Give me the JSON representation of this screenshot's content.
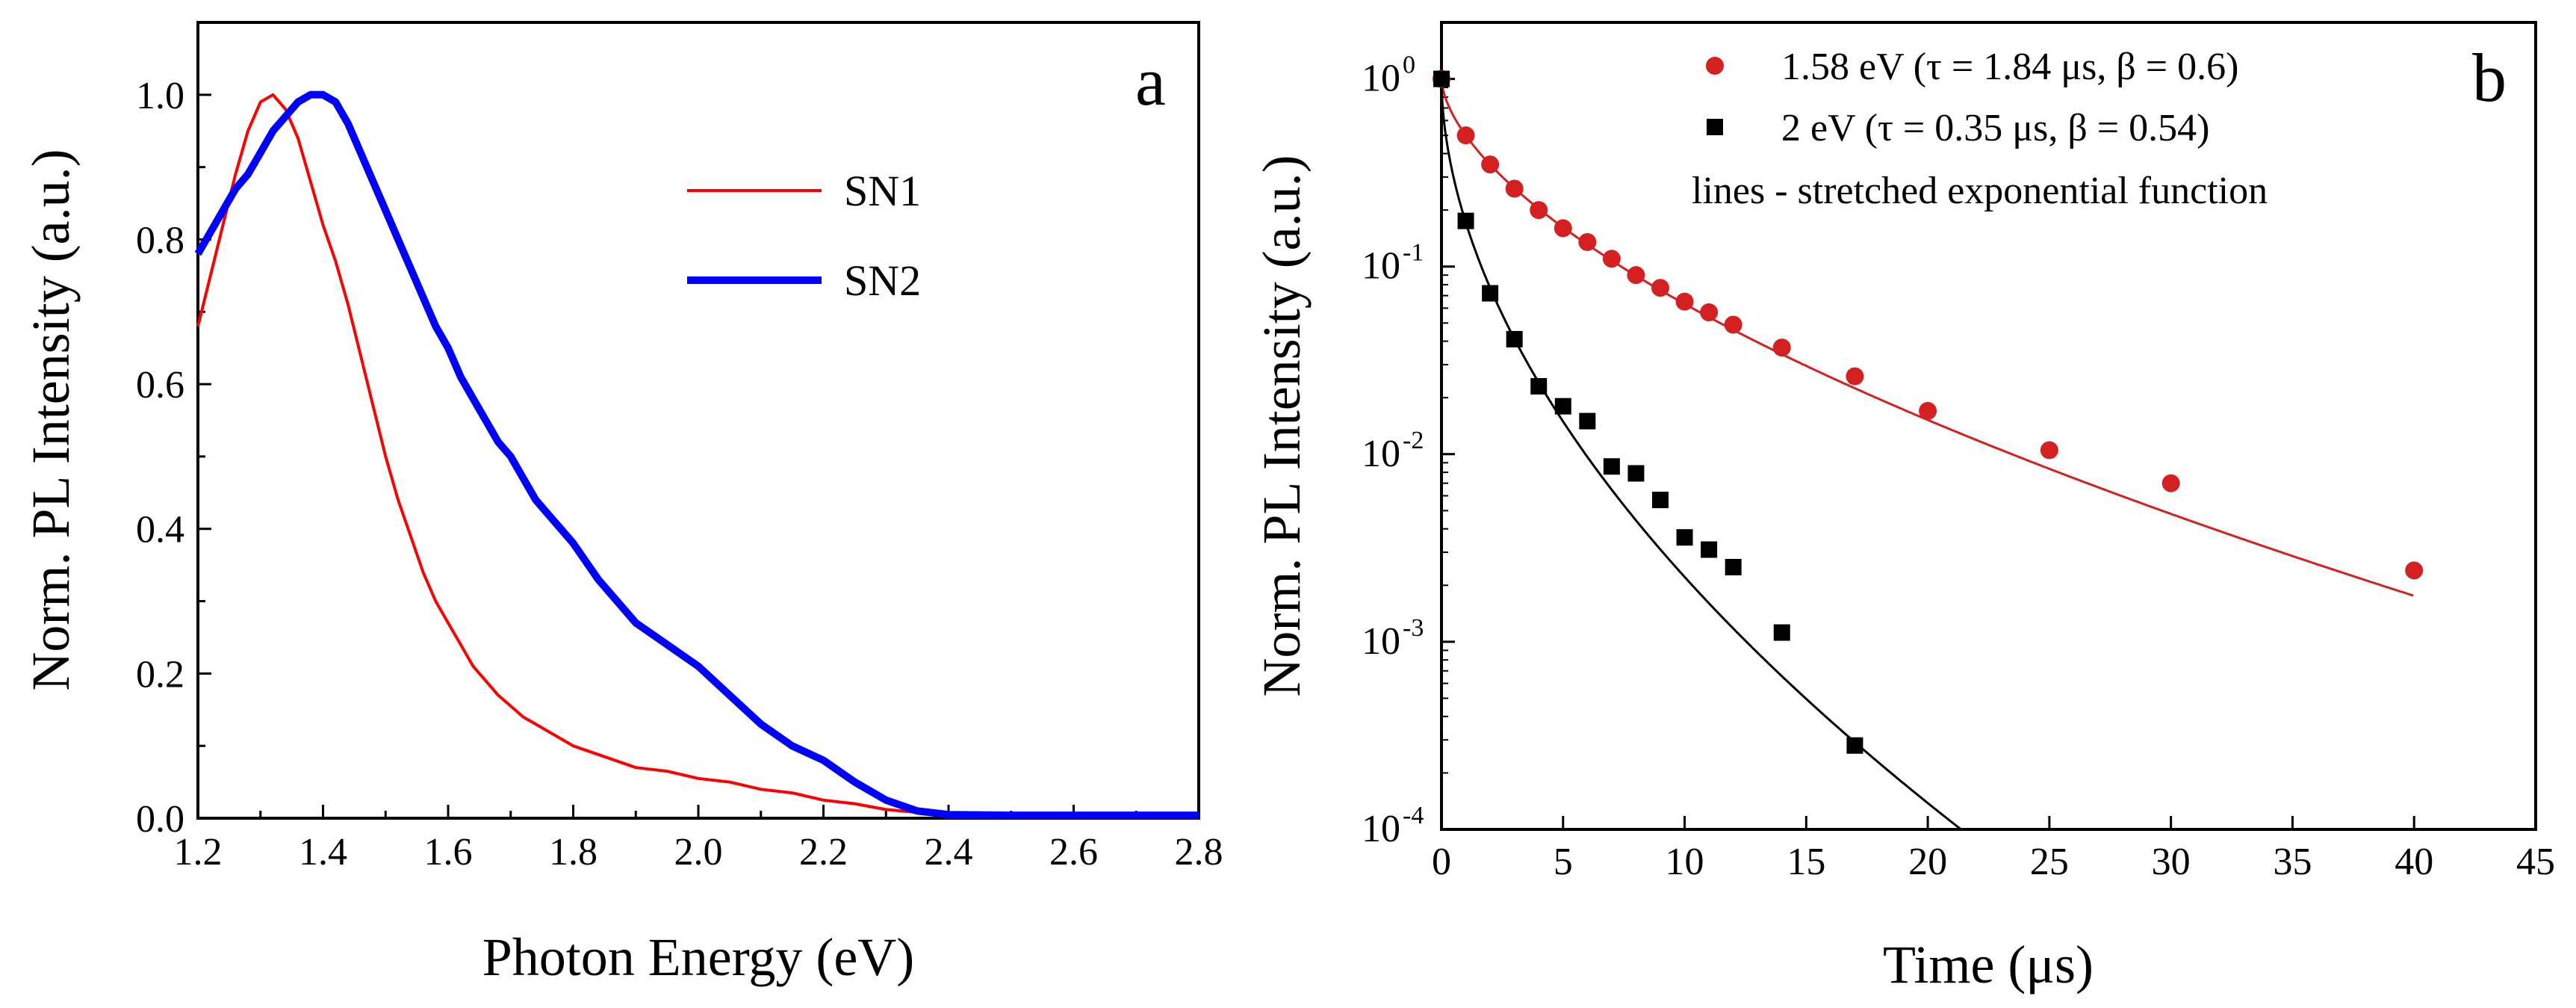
{
  "chart_data": [
    {
      "panel": "a",
      "type": "line",
      "xlabel": "Photon Energy (eV)",
      "ylabel": "Norm. PL Intensity (a.u.)",
      "xlim": [
        1.2,
        2.8
      ],
      "ylim": [
        0.0,
        1.1
      ],
      "xticks": [
        "1.2",
        "1.4",
        "1.6",
        "1.8",
        "2.0",
        "2.2",
        "2.4",
        "2.6",
        "2.8"
      ],
      "yticks": [
        "0.0",
        "0.2",
        "0.4",
        "0.6",
        "0.8",
        "1.0"
      ],
      "legend_position": "upper-right",
      "series": [
        {
          "name": "SN1",
          "color": "#ff0000",
          "x": [
            1.2,
            1.22,
            1.24,
            1.26,
            1.28,
            1.3,
            1.32,
            1.34,
            1.36,
            1.38,
            1.4,
            1.42,
            1.44,
            1.46,
            1.48,
            1.5,
            1.52,
            1.54,
            1.56,
            1.58,
            1.6,
            1.62,
            1.64,
            1.66,
            1.68,
            1.7,
            1.72,
            1.74,
            1.76,
            1.78,
            1.8,
            1.85,
            1.9,
            1.95,
            2.0,
            2.05,
            2.1,
            2.15,
            2.2,
            2.25,
            2.3,
            2.35,
            2.4,
            2.5,
            2.6,
            2.7,
            2.8
          ],
          "y": [
            0.68,
            0.75,
            0.82,
            0.89,
            0.95,
            0.99,
            1.0,
            0.98,
            0.94,
            0.88,
            0.82,
            0.77,
            0.71,
            0.64,
            0.57,
            0.5,
            0.44,
            0.39,
            0.34,
            0.3,
            0.27,
            0.24,
            0.21,
            0.19,
            0.17,
            0.155,
            0.14,
            0.13,
            0.12,
            0.11,
            0.1,
            0.085,
            0.07,
            0.065,
            0.055,
            0.05,
            0.04,
            0.035,
            0.025,
            0.02,
            0.012,
            0.008,
            0.005,
            0.003,
            0.002,
            0.001,
            0.001
          ]
        },
        {
          "name": "SN2",
          "color": "#0000ff",
          "x": [
            1.2,
            1.22,
            1.24,
            1.26,
            1.28,
            1.3,
            1.32,
            1.34,
            1.36,
            1.38,
            1.4,
            1.42,
            1.44,
            1.46,
            1.48,
            1.5,
            1.52,
            1.54,
            1.56,
            1.58,
            1.6,
            1.62,
            1.64,
            1.66,
            1.68,
            1.7,
            1.72,
            1.74,
            1.76,
            1.78,
            1.8,
            1.82,
            1.84,
            1.86,
            1.88,
            1.9,
            1.95,
            2.0,
            2.05,
            2.1,
            2.15,
            2.2,
            2.25,
            2.3,
            2.35,
            2.4,
            2.5,
            2.6,
            2.7,
            2.8
          ],
          "y": [
            0.78,
            0.81,
            0.84,
            0.87,
            0.89,
            0.92,
            0.95,
            0.97,
            0.99,
            1.0,
            1.0,
            0.99,
            0.96,
            0.92,
            0.88,
            0.84,
            0.8,
            0.76,
            0.72,
            0.68,
            0.65,
            0.61,
            0.58,
            0.55,
            0.52,
            0.5,
            0.47,
            0.44,
            0.42,
            0.4,
            0.38,
            0.355,
            0.33,
            0.31,
            0.29,
            0.27,
            0.24,
            0.21,
            0.17,
            0.13,
            0.1,
            0.08,
            0.05,
            0.025,
            0.01,
            0.005,
            0.004,
            0.004,
            0.004,
            0.004
          ]
        }
      ]
    },
    {
      "panel": "b",
      "type": "scatter",
      "xlabel": "Time (μs)",
      "ylabel": "Norm. PL Intensity (a.u.)",
      "xlim": [
        0,
        45
      ],
      "ylim": [
        0.0001,
        2
      ],
      "yscale": "log",
      "xticks": [
        "0",
        "5",
        "10",
        "15",
        "20",
        "25",
        "30",
        "35",
        "40",
        "45"
      ],
      "yticks": [
        {
          "base": "10",
          "exp": "0"
        },
        {
          "base": "10",
          "exp": "-1"
        },
        {
          "base": "10",
          "exp": "-2"
        },
        {
          "base": "10",
          "exp": "-3"
        },
        {
          "base": "10",
          "exp": "-4"
        }
      ],
      "legend_position": "top",
      "legend_note": "lines - stretched exponential function",
      "series": [
        {
          "name": "1.58 eV (τ = 1.84 μs, β = 0.6)",
          "marker": "circle",
          "color": "#d42020",
          "x": [
            0,
            1,
            2,
            3,
            4,
            5,
            6,
            7,
            8,
            9,
            10,
            11,
            12,
            14,
            17,
            20,
            25,
            30,
            40
          ],
          "y": [
            1.0,
            0.5,
            0.35,
            0.26,
            0.2,
            0.16,
            0.135,
            0.11,
            0.09,
            0.077,
            0.065,
            0.057,
            0.049,
            0.037,
            0.026,
            0.017,
            0.0105,
            0.007,
            0.0024
          ],
          "fit": {
            "tau": 1.84,
            "beta": 0.6
          }
        },
        {
          "name": "2 eV (τ = 0.35 μs, β = 0.54)",
          "marker": "square",
          "color": "#000000",
          "x": [
            0,
            1,
            2,
            3,
            4,
            5,
            6,
            7,
            8,
            9,
            10,
            11,
            12,
            14,
            17
          ],
          "y": [
            1.0,
            0.175,
            0.072,
            0.041,
            0.023,
            0.018,
            0.015,
            0.0086,
            0.0079,
            0.0057,
            0.0036,
            0.0031,
            0.0025,
            0.00112,
            0.00028
          ],
          "fit": {
            "tau": 0.35,
            "beta": 0.54
          }
        }
      ]
    }
  ],
  "panel_a": {
    "letter": "a"
  },
  "panel_b": {
    "letter": "b"
  }
}
